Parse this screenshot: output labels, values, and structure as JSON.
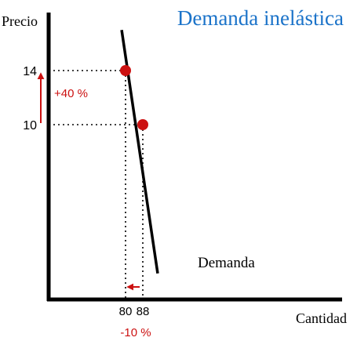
{
  "chart_data": {
    "type": "line",
    "title": "Demanda inelástica",
    "xlabel": "Cantidad",
    "ylabel": "Precio",
    "series": [
      {
        "name": "Demanda",
        "points": [
          {
            "x": 78.2,
            "y": 17.0
          },
          {
            "x": 94.9,
            "y": -1.0
          }
        ]
      }
    ],
    "highlight_points": [
      {
        "x": 80,
        "y": 14
      },
      {
        "x": 88,
        "y": 10
      }
    ],
    "x_ticks": [
      {
        "value": 80,
        "label": "80"
      },
      {
        "value": 88,
        "label": "88"
      }
    ],
    "y_ticks": [
      {
        "value": 14,
        "label": "14"
      },
      {
        "value": 10,
        "label": "10"
      }
    ],
    "annotations": {
      "price_change": "+40 %",
      "quantity_change": "-10 %"
    },
    "colors": {
      "title": "#1b73c9",
      "accent": "#cc1111",
      "ink": "#000000"
    }
  }
}
